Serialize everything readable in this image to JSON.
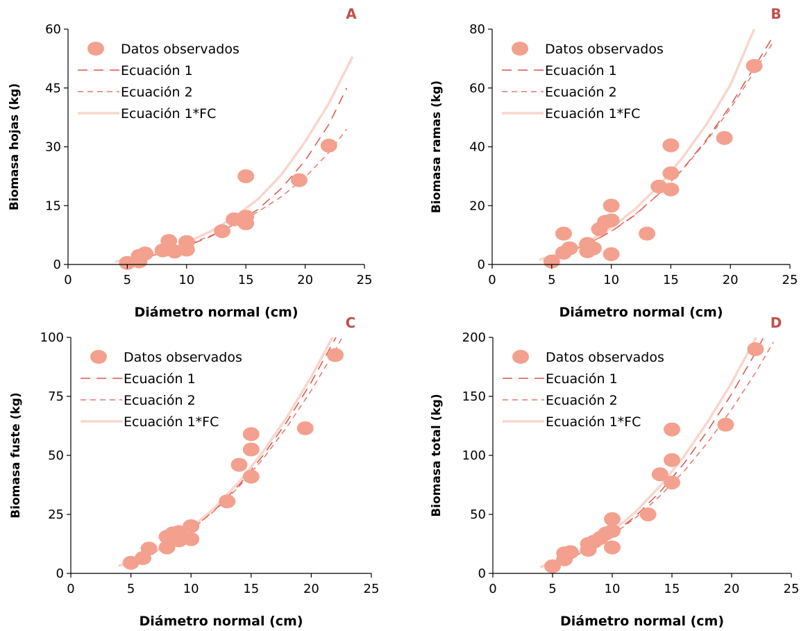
{
  "colors": {
    "observed": "#f4a08e",
    "eq1": "#d9534a",
    "eq2": "#e8776a",
    "eqfc": "#f8d6cc",
    "letter": "#c0504d",
    "axis": "#000000"
  },
  "legend": {
    "observed": "Datos observados",
    "eq1": "Ecuación 1",
    "eq2": "Ecuación 2",
    "eqfc": "Ecuación 1*FC"
  },
  "chart_data": [
    {
      "type": "scatter",
      "panel": "A",
      "xlabel": "Diámetro normal (cm)",
      "ylabel": "Biomasa hojas (kg)",
      "xlim": [
        0,
        25
      ],
      "ylim": [
        0,
        60
      ],
      "xticks": [
        0,
        5,
        10,
        15,
        20,
        25
      ],
      "yticks": [
        0,
        15,
        30,
        45,
        60
      ],
      "points": [
        [
          5,
          0.4
        ],
        [
          6,
          0.8
        ],
        [
          6,
          2.2
        ],
        [
          6.5,
          2.8
        ],
        [
          8,
          3.6
        ],
        [
          8.5,
          6
        ],
        [
          8.5,
          4.2
        ],
        [
          9,
          3.3
        ],
        [
          10,
          3.8
        ],
        [
          10,
          5.7
        ],
        [
          13,
          8.5
        ],
        [
          14,
          11.5
        ],
        [
          15,
          10.5
        ],
        [
          15,
          12.2
        ],
        [
          15,
          22.5
        ],
        [
          19.5,
          21.5
        ],
        [
          22,
          30.3
        ]
      ],
      "series": [
        {
          "name": "Ecuación 1",
          "x": [
            4,
            6,
            8,
            10,
            12,
            14,
            16,
            18,
            20,
            22,
            23.5
          ],
          "y": [
            0.6,
            1.5,
            2.9,
            4.7,
            7.1,
            10.2,
            14.0,
            19.4,
            26.5,
            35.7,
            45.0
          ]
        },
        {
          "name": "Ecuación 2",
          "x": [
            4,
            6,
            8,
            10,
            12,
            14,
            16,
            18,
            20,
            22,
            23.5
          ],
          "y": [
            0.6,
            1.6,
            3.0,
            5.0,
            7.3,
            10.1,
            13.4,
            17.3,
            22.2,
            28.6,
            34.5
          ]
        },
        {
          "name": "Ecuación 1*FC",
          "x": [
            4,
            6,
            8,
            10,
            12,
            14,
            16,
            18,
            20,
            22,
            24
          ],
          "y": [
            0.7,
            1.8,
            3.4,
            5.6,
            8.4,
            12.0,
            16.6,
            22.9,
            31.3,
            41.1,
            53.0
          ]
        }
      ]
    },
    {
      "type": "scatter",
      "panel": "B",
      "xlabel": "Diámetro normal (cm)",
      "ylabel": "Biomasa ramas (kg)",
      "xlim": [
        0,
        25
      ],
      "ylim": [
        0,
        80
      ],
      "xticks": [
        0,
        5,
        10,
        15,
        20,
        25
      ],
      "yticks": [
        0,
        20,
        40,
        60,
        80
      ],
      "points": [
        [
          5,
          1
        ],
        [
          6,
          4
        ],
        [
          6,
          10.5
        ],
        [
          6.5,
          5.5
        ],
        [
          8,
          7
        ],
        [
          8,
          4.5
        ],
        [
          8.5,
          5.5
        ],
        [
          9,
          12
        ],
        [
          9.5,
          14.5
        ],
        [
          10,
          15
        ],
        [
          10,
          20
        ],
        [
          10,
          3.5
        ],
        [
          13,
          10.5
        ],
        [
          14,
          26.5
        ],
        [
          15,
          25.5
        ],
        [
          15,
          31
        ],
        [
          15,
          40.5
        ],
        [
          19.5,
          43
        ],
        [
          22,
          67.5
        ]
      ],
      "series": [
        {
          "name": "Ecuación 1",
          "x": [
            4,
            6,
            8,
            10,
            12,
            14,
            16,
            18,
            20,
            22,
            23.5
          ],
          "y": [
            1.5,
            3.6,
            6.8,
            11.2,
            16.8,
            24.0,
            32.5,
            42.5,
            54.0,
            67.0,
            77.0
          ]
        },
        {
          "name": "Ecuación 2",
          "x": [
            4,
            6,
            8,
            10,
            12,
            14,
            16,
            18,
            20,
            22,
            23.5
          ],
          "y": [
            1.6,
            3.7,
            6.9,
            11.3,
            17.0,
            24.0,
            32.3,
            42.0,
            53.0,
            65.5,
            75.0
          ]
        },
        {
          "name": "Ecuación 1*FC",
          "x": [
            4,
            6,
            8,
            10,
            12,
            14,
            16,
            18,
            20,
            22
          ],
          "y": [
            1.7,
            4.0,
            7.6,
            12.5,
            18.8,
            26.8,
            36.4,
            47.7,
            61.0,
            80.0
          ]
        }
      ]
    },
    {
      "type": "scatter",
      "panel": "C",
      "xlabel": "Diámetro normal (cm)",
      "ylabel": "Biomasa fuste (kg)",
      "xlim": [
        0,
        25
      ],
      "ylim": [
        0,
        100
      ],
      "xticks": [
        0,
        5,
        10,
        15,
        20,
        25
      ],
      "yticks": [
        0,
        25,
        50,
        75,
        100
      ],
      "points": [
        [
          5,
          4.5
        ],
        [
          6,
          6.5
        ],
        [
          6.5,
          10.5
        ],
        [
          8,
          15.5
        ],
        [
          8,
          11
        ],
        [
          8.5,
          17
        ],
        [
          9,
          14
        ],
        [
          9,
          17.5
        ],
        [
          10,
          14.5
        ],
        [
          10,
          20
        ],
        [
          13,
          30.5
        ],
        [
          14,
          46
        ],
        [
          15,
          41
        ],
        [
          15,
          52.5
        ],
        [
          15,
          59
        ],
        [
          19.5,
          61.5
        ],
        [
          22,
          92.5
        ]
      ],
      "series": [
        {
          "name": "Ecuación 1",
          "x": [
            4,
            6,
            8,
            10,
            12,
            14,
            16,
            18,
            20,
            22,
            23
          ],
          "y": [
            3,
            6.5,
            11.5,
            18.5,
            27,
            37.5,
            50,
            64.5,
            81,
            99.5,
            109
          ]
        },
        {
          "name": "Ecuación 2",
          "x": [
            4,
            6,
            8,
            10,
            12,
            14,
            16,
            18,
            20,
            22,
            23
          ],
          "y": [
            3.2,
            6.6,
            11.6,
            18.4,
            26.7,
            36.8,
            48.6,
            62.2,
            77.5,
            94.6,
            104
          ]
        },
        {
          "name": "Ecuación 1*FC",
          "x": [
            4,
            6,
            8,
            10,
            12,
            14,
            16,
            18,
            20,
            22,
            23
          ],
          "y": [
            3.3,
            6.9,
            12.1,
            19.2,
            28,
            38.8,
            51.6,
            66.4,
            83.3,
            102.2,
            112
          ]
        }
      ]
    },
    {
      "type": "scatter",
      "panel": "D",
      "xlabel": "Diámetro normal (cm)",
      "ylabel": "Biomasa total (kg)",
      "xlim": [
        0,
        25
      ],
      "ylim": [
        0,
        200
      ],
      "xticks": [
        0,
        5,
        10,
        15,
        20,
        25
      ],
      "yticks": [
        0,
        50,
        100,
        150,
        200
      ],
      "points": [
        [
          5,
          6
        ],
        [
          6,
          12
        ],
        [
          6,
          17
        ],
        [
          6.5,
          18
        ],
        [
          8,
          20
        ],
        [
          8,
          25
        ],
        [
          8.5,
          27
        ],
        [
          9,
          30
        ],
        [
          9.5,
          34
        ],
        [
          10,
          36
        ],
        [
          10,
          46
        ],
        [
          10,
          22
        ],
        [
          13,
          50
        ],
        [
          14,
          84
        ],
        [
          15,
          77
        ],
        [
          15,
          96
        ],
        [
          15,
          122
        ],
        [
          19.5,
          126
        ],
        [
          22,
          190
        ]
      ],
      "series": [
        {
          "name": "Ecuación 1",
          "x": [
            4,
            6,
            8,
            10,
            12,
            14,
            16,
            18,
            20,
            22,
            23.5
          ],
          "y": [
            5,
            11,
            20,
            33,
            49,
            69,
            93,
            121,
            152,
            187,
            216
          ]
        },
        {
          "name": "Ecuación 2",
          "x": [
            4,
            6,
            8,
            10,
            12,
            14,
            16,
            18,
            20,
            22,
            23.5
          ],
          "y": [
            5.5,
            11.5,
            20.5,
            32.5,
            47.5,
            65.5,
            86.5,
            111,
            139,
            170,
            196
          ]
        },
        {
          "name": "Ecuación 1*FC",
          "x": [
            4,
            6,
            8,
            10,
            12,
            14,
            16,
            18,
            20,
            22,
            23
          ],
          "y": [
            5.5,
            12,
            22,
            35.5,
            52.5,
            74,
            99,
            128.5,
            161.5,
            199,
            219
          ]
        }
      ]
    }
  ]
}
